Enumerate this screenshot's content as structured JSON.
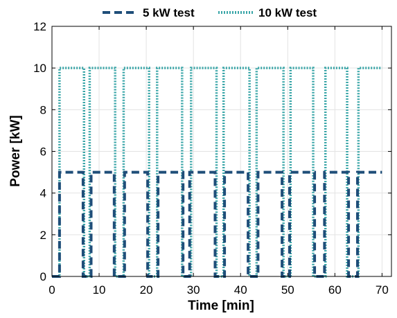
{
  "chart_data": {
    "type": "line",
    "xlabel": "Time [min]",
    "ylabel": "Power [kW]",
    "xlim": [
      0,
      72
    ],
    "ylim": [
      0,
      12
    ],
    "xticks": [
      0,
      10,
      20,
      30,
      40,
      50,
      60,
      70
    ],
    "yticks": [
      0,
      2,
      4,
      6,
      8,
      10,
      12
    ],
    "x_tick_labels": [
      "0",
      "10",
      "20",
      "30",
      "40",
      "50",
      "60",
      "70"
    ],
    "y_tick_labels": [
      "0",
      "2",
      "4",
      "6",
      "8",
      "10",
      "12"
    ],
    "grid": true,
    "legend": {
      "position": "top",
      "entries": [
        "5 kW test",
        "10 kW test"
      ]
    },
    "series": [
      {
        "name": "5 kW test",
        "style": "dashed",
        "color": "#1f4e79",
        "x": [
          0,
          1.6,
          1.6,
          6.6,
          6.6,
          8.3,
          8.3,
          13.2,
          13.2,
          15.4,
          15.4,
          20.3,
          20.3,
          22.5,
          22.5,
          27.8,
          27.8,
          29.2,
          29.2,
          34.6,
          34.6,
          36.6,
          36.6,
          41.6,
          41.6,
          43.7,
          43.7,
          48.8,
          48.8,
          50.4,
          50.4,
          55.7,
          55.7,
          57.8,
          57.8,
          62.9,
          62.9,
          64.8,
          64.8,
          70
        ],
        "y": [
          0,
          0,
          5,
          5,
          0,
          0,
          5,
          5,
          0,
          0,
          5,
          5,
          0,
          0,
          5,
          5,
          0,
          0,
          5,
          5,
          0,
          0,
          5,
          5,
          0,
          0,
          5,
          5,
          0,
          0,
          5,
          5,
          0,
          0,
          5,
          5,
          0,
          0,
          5,
          5
        ]
      },
      {
        "name": "10 kW test",
        "style": "dotted",
        "color": "#3aa6a8",
        "x": [
          0,
          1.6,
          1.6,
          6.8,
          6.8,
          8.0,
          8.0,
          13.4,
          13.4,
          15.2,
          15.2,
          20.6,
          20.6,
          22.3,
          22.3,
          27.6,
          27.6,
          29.5,
          29.5,
          34.9,
          34.9,
          36.4,
          36.4,
          41.9,
          41.9,
          43.4,
          43.4,
          49.1,
          49.1,
          50.6,
          50.6,
          55.4,
          55.4,
          58.0,
          58.0,
          62.6,
          62.6,
          65.0,
          65.0,
          70
        ],
        "y": [
          0,
          0,
          10,
          10,
          0,
          0,
          10,
          10,
          0,
          0,
          10,
          10,
          0,
          0,
          10,
          10,
          0,
          0,
          10,
          10,
          0,
          0,
          10,
          10,
          0,
          0,
          10,
          10,
          0,
          0,
          10,
          10,
          0,
          0,
          10,
          10,
          0,
          0,
          10,
          10
        ]
      }
    ]
  }
}
